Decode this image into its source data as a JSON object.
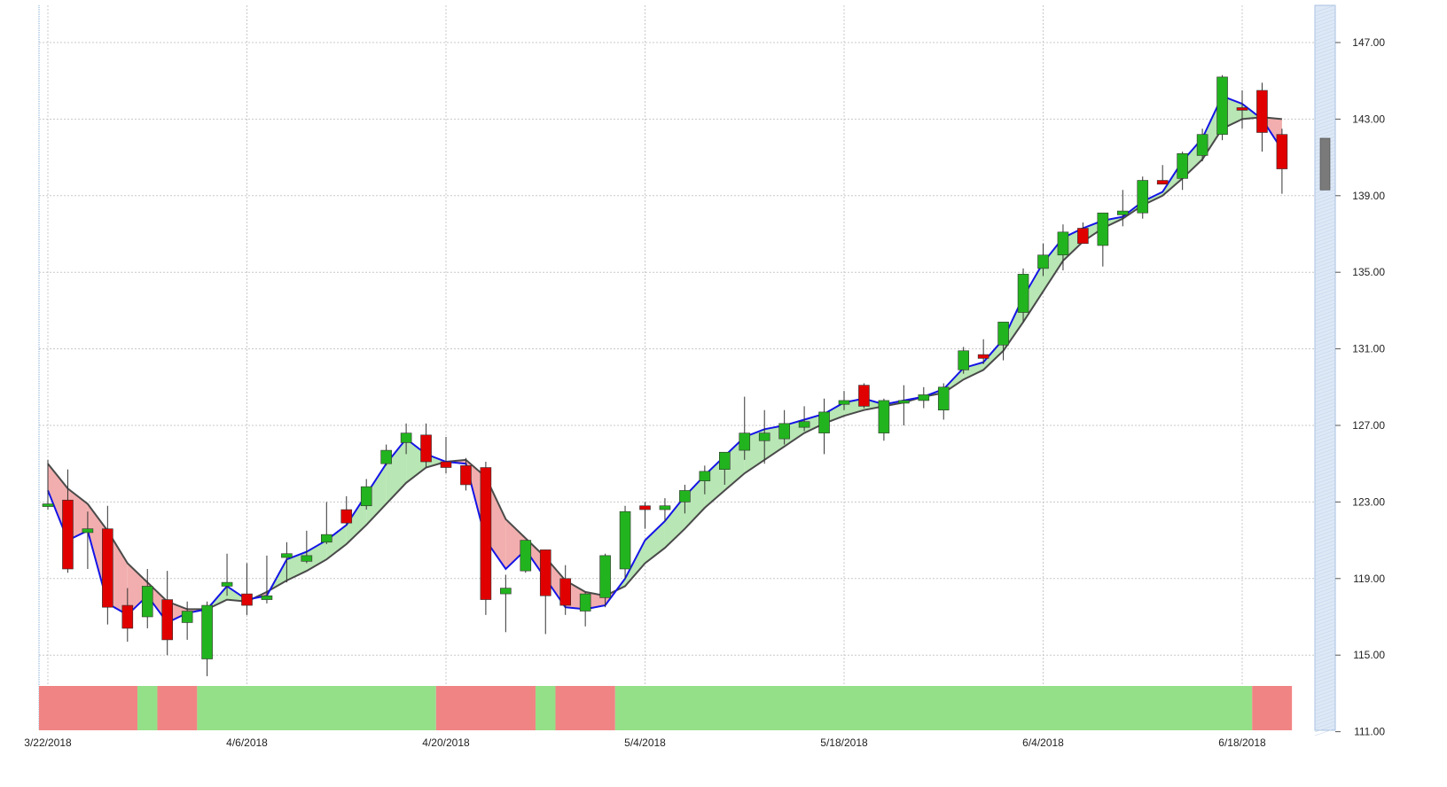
{
  "chart_data": {
    "type": "candlestick",
    "x_tick_labels": [
      "3/22/2018",
      "4/6/2018",
      "4/20/2018",
      "5/4/2018",
      "5/18/2018",
      "6/4/2018",
      "6/18/2018"
    ],
    "y_tick_labels": [
      "147.00",
      "143.00",
      "139.00",
      "135.00",
      "131.00",
      "127.00",
      "123.00",
      "119.00",
      "115.00",
      "111.00"
    ],
    "ylim": [
      111,
      148.9
    ],
    "y_axis_position": "right",
    "grid": true,
    "colors": {
      "up": "#22b41e",
      "down": "#e00000",
      "fast_line": "#1414e6",
      "slow_line": "#4a4a4a",
      "fill_up": "#b8e6b4",
      "fill_down": "#f2aeae",
      "band_up": "#94e088",
      "band_down": "#f08484",
      "pending": "#7a7a7a",
      "grid": "#c8c8c8"
    },
    "candles": [
      {
        "date": "3/22/2018",
        "o": 122.8,
        "h": 125.2,
        "l": 122.6,
        "c": 122.9
      },
      {
        "date": "3/23/2018",
        "o": 123.1,
        "h": 124.7,
        "l": 119.3,
        "c": 119.5
      },
      {
        "date": "3/26/2018",
        "o": 121.4,
        "h": 122.5,
        "l": 119.5,
        "c": 121.6
      },
      {
        "date": "3/27/2018",
        "o": 121.6,
        "h": 122.8,
        "l": 116.6,
        "c": 117.5
      },
      {
        "date": "3/28/2018",
        "o": 117.6,
        "h": 118.5,
        "l": 115.7,
        "c": 116.4
      },
      {
        "date": "3/29/2018",
        "o": 117.0,
        "h": 119.5,
        "l": 116.4,
        "c": 118.6
      },
      {
        "date": "4/2/2018",
        "o": 117.9,
        "h": 119.4,
        "l": 115.0,
        "c": 115.8
      },
      {
        "date": "4/3/2018",
        "o": 116.7,
        "h": 117.8,
        "l": 115.8,
        "c": 117.3
      },
      {
        "date": "4/4/2018",
        "o": 114.8,
        "h": 117.8,
        "l": 113.9,
        "c": 117.6
      },
      {
        "date": "4/5/2018",
        "o": 118.6,
        "h": 120.3,
        "l": 118.1,
        "c": 118.8
      },
      {
        "date": "4/6/2018",
        "o": 118.2,
        "h": 119.8,
        "l": 117.1,
        "c": 117.6
      },
      {
        "date": "4/9/2018",
        "o": 117.9,
        "h": 120.2,
        "l": 117.7,
        "c": 118.1
      },
      {
        "date": "4/10/2018",
        "o": 120.1,
        "h": 120.9,
        "l": 118.8,
        "c": 120.3
      },
      {
        "date": "4/11/2018",
        "o": 119.9,
        "h": 121.5,
        "l": 119.8,
        "c": 120.2
      },
      {
        "date": "4/12/2018",
        "o": 120.9,
        "h": 123.0,
        "l": 120.8,
        "c": 121.3
      },
      {
        "date": "4/13/2018",
        "o": 122.6,
        "h": 123.3,
        "l": 121.8,
        "c": 121.9
      },
      {
        "date": "4/16/2018",
        "o": 122.8,
        "h": 124.2,
        "l": 122.6,
        "c": 123.8
      },
      {
        "date": "4/17/2018",
        "o": 125.0,
        "h": 126.0,
        "l": 124.9,
        "c": 125.7
      },
      {
        "date": "4/18/2018",
        "o": 126.1,
        "h": 127.1,
        "l": 125.5,
        "c": 126.6
      },
      {
        "date": "4/19/2018",
        "o": 126.5,
        "h": 127.1,
        "l": 124.8,
        "c": 125.1
      },
      {
        "date": "4/20/2018",
        "o": 125.1,
        "h": 126.4,
        "l": 124.5,
        "c": 124.8
      },
      {
        "date": "4/23/2018",
        "o": 124.9,
        "h": 125.3,
        "l": 123.6,
        "c": 123.9
      },
      {
        "date": "4/24/2018",
        "o": 124.8,
        "h": 125.1,
        "l": 117.1,
        "c": 117.9
      },
      {
        "date": "4/25/2018",
        "o": 118.2,
        "h": 119.2,
        "l": 116.2,
        "c": 118.5
      },
      {
        "date": "4/26/2018",
        "o": 119.4,
        "h": 121.0,
        "l": 119.3,
        "c": 121.0
      },
      {
        "date": "4/27/2018",
        "o": 120.5,
        "h": 120.5,
        "l": 116.1,
        "c": 118.1
      },
      {
        "date": "4/30/2018",
        "o": 119.0,
        "h": 119.7,
        "l": 117.1,
        "c": 117.6
      },
      {
        "date": "5/1/2018",
        "o": 117.3,
        "h": 118.3,
        "l": 116.5,
        "c": 118.2
      },
      {
        "date": "5/2/2018",
        "o": 118.0,
        "h": 120.3,
        "l": 117.5,
        "c": 120.2
      },
      {
        "date": "5/3/2018",
        "o": 119.5,
        "h": 122.8,
        "l": 119.0,
        "c": 122.5
      },
      {
        "date": "5/4/2018",
        "o": 122.8,
        "h": 123.0,
        "l": 121.6,
        "c": 122.6
      },
      {
        "date": "5/7/2018",
        "o": 122.6,
        "h": 123.2,
        "l": 122.0,
        "c": 122.8
      },
      {
        "date": "5/8/2018",
        "o": 123.0,
        "h": 123.9,
        "l": 122.4,
        "c": 123.6
      },
      {
        "date": "5/9/2018",
        "o": 124.1,
        "h": 124.9,
        "l": 123.4,
        "c": 124.6
      },
      {
        "date": "5/10/2018",
        "o": 124.7,
        "h": 125.6,
        "l": 123.9,
        "c": 125.6
      },
      {
        "date": "5/11/2018",
        "o": 125.7,
        "h": 128.5,
        "l": 125.2,
        "c": 126.6
      },
      {
        "date": "5/14/2018",
        "o": 126.2,
        "h": 127.8,
        "l": 125.0,
        "c": 126.6
      },
      {
        "date": "5/15/2018",
        "o": 126.3,
        "h": 127.8,
        "l": 126.0,
        "c": 127.1
      },
      {
        "date": "5/16/2018",
        "o": 126.9,
        "h": 128.0,
        "l": 126.7,
        "c": 127.2
      },
      {
        "date": "5/17/2018",
        "o": 126.6,
        "h": 128.4,
        "l": 125.5,
        "c": 127.7
      },
      {
        "date": "5/18/2018",
        "o": 128.1,
        "h": 128.8,
        "l": 127.8,
        "c": 128.3
      },
      {
        "date": "5/21/2018",
        "o": 129.1,
        "h": 129.2,
        "l": 127.9,
        "c": 128.0
      },
      {
        "date": "5/22/2018",
        "o": 126.6,
        "h": 128.4,
        "l": 126.2,
        "c": 128.3
      },
      {
        "date": "5/23/2018",
        "o": 128.2,
        "h": 129.1,
        "l": 127.0,
        "c": 128.3
      },
      {
        "date": "5/24/2018",
        "o": 128.3,
        "h": 129.0,
        "l": 127.9,
        "c": 128.6
      },
      {
        "date": "5/25/2018",
        "o": 127.8,
        "h": 129.2,
        "l": 127.3,
        "c": 129.0
      },
      {
        "date": "5/29/2018",
        "o": 129.9,
        "h": 131.1,
        "l": 129.7,
        "c": 130.9
      },
      {
        "date": "5/30/2018",
        "o": 130.7,
        "h": 131.5,
        "l": 130.2,
        "c": 130.5
      },
      {
        "date": "5/31/2018",
        "o": 131.2,
        "h": 132.1,
        "l": 130.4,
        "c": 132.4
      },
      {
        "date": "6/1/2018",
        "o": 132.9,
        "h": 135.2,
        "l": 132.4,
        "c": 134.9
      },
      {
        "date": "6/4/2018",
        "o": 135.2,
        "h": 136.5,
        "l": 134.8,
        "c": 135.9
      },
      {
        "date": "6/5/2018",
        "o": 135.9,
        "h": 137.5,
        "l": 135.1,
        "c": 137.1
      },
      {
        "date": "6/6/2018",
        "o": 137.3,
        "h": 137.6,
        "l": 136.8,
        "c": 136.5
      },
      {
        "date": "6/7/2018",
        "o": 136.4,
        "h": 138.1,
        "l": 135.3,
        "c": 138.1
      },
      {
        "date": "6/8/2018",
        "o": 138.0,
        "h": 139.3,
        "l": 137.4,
        "c": 138.2
      },
      {
        "date": "6/11/2018",
        "o": 138.1,
        "h": 140.0,
        "l": 137.8,
        "c": 139.8
      },
      {
        "date": "6/12/2018",
        "o": 139.8,
        "h": 140.6,
        "l": 139.6,
        "c": 139.6
      },
      {
        "date": "6/13/2018",
        "o": 139.9,
        "h": 141.3,
        "l": 139.3,
        "c": 141.2
      },
      {
        "date": "6/14/2018",
        "o": 141.1,
        "h": 142.5,
        "l": 140.8,
        "c": 142.2
      },
      {
        "date": "6/15/2018",
        "o": 142.2,
        "h": 145.3,
        "l": 141.9,
        "c": 145.2
      },
      {
        "date": "6/18/2018",
        "o": 143.6,
        "h": 144.5,
        "l": 142.5,
        "c": 143.5
      },
      {
        "date": "6/19/2018",
        "o": 144.5,
        "h": 144.9,
        "l": 141.3,
        "c": 142.3
      },
      {
        "date": "6/20/2018",
        "o": 142.2,
        "h": 142.5,
        "l": 139.1,
        "c": 140.4
      }
    ],
    "fast_line": [
      123.6,
      121.0,
      121.5,
      117.7,
      117.1,
      118.1,
      116.7,
      117.2,
      117.4,
      118.6,
      117.9,
      118.1,
      120.0,
      120.4,
      121.0,
      121.8,
      123.4,
      125.0,
      126.3,
      125.5,
      125.1,
      125.0,
      121.0,
      119.5,
      120.5,
      119.0,
      117.5,
      117.4,
      117.6,
      119.0,
      121.0,
      122.0,
      123.3,
      124.4,
      125.4,
      126.4,
      126.8,
      127.0,
      127.3,
      127.6,
      128.2,
      128.4,
      128.1,
      128.3,
      128.5,
      128.9,
      130.0,
      130.3,
      131.5,
      133.7,
      135.5,
      136.8,
      137.3,
      137.7,
      137.9,
      138.7,
      139.2,
      140.8,
      142.0,
      144.2,
      143.8,
      143.0,
      141.4
    ],
    "slow_line": [
      125.0,
      123.7,
      122.9,
      121.5,
      119.8,
      118.8,
      117.8,
      117.4,
      117.4,
      117.9,
      117.8,
      118.3,
      118.9,
      119.4,
      120.0,
      120.8,
      121.8,
      122.9,
      124.0,
      124.8,
      125.1,
      125.2,
      124.3,
      122.1,
      121.1,
      120.1,
      118.9,
      118.3,
      118.1,
      118.6,
      119.8,
      120.6,
      121.6,
      122.7,
      123.6,
      124.5,
      125.2,
      125.9,
      126.6,
      127.1,
      127.5,
      127.8,
      128.0,
      128.2,
      128.5,
      128.7,
      129.4,
      129.9,
      130.9,
      132.4,
      134.0,
      135.6,
      136.6,
      137.3,
      137.8,
      138.5,
      139.0,
      139.9,
      140.9,
      142.5,
      143.0,
      143.1,
      143.0
    ],
    "band": [
      {
        "from": 0,
        "to": 4,
        "state": "down"
      },
      {
        "from": 5,
        "to": 5,
        "state": "up"
      },
      {
        "from": 6,
        "to": 7,
        "state": "down"
      },
      {
        "from": 8,
        "to": 19,
        "state": "up"
      },
      {
        "from": 20,
        "to": 24,
        "state": "down"
      },
      {
        "from": 25,
        "to": 25,
        "state": "up"
      },
      {
        "from": 26,
        "to": 28,
        "state": "down"
      },
      {
        "from": 29,
        "to": 60,
        "state": "up"
      },
      {
        "from": 61,
        "to": 62,
        "state": "down"
      }
    ],
    "pending_bar": {
      "o": 142.0,
      "c": 139.3
    }
  }
}
